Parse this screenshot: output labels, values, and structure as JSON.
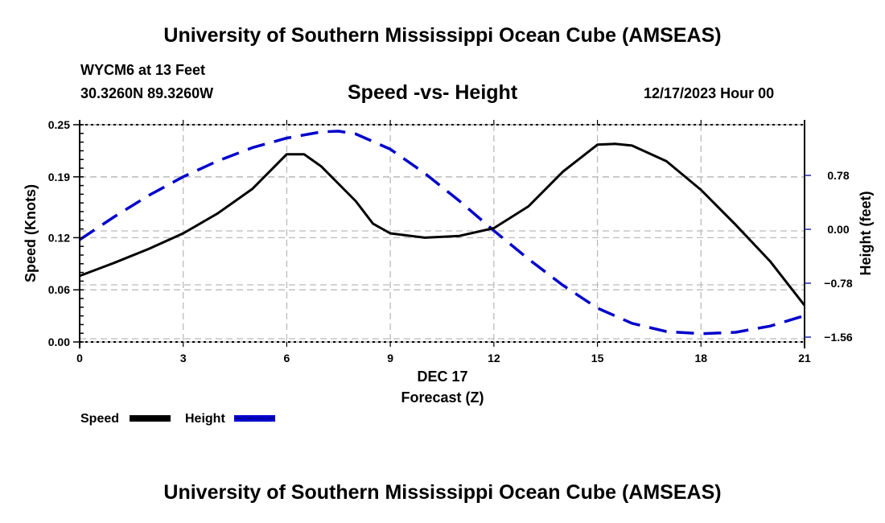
{
  "header": {
    "main_title": "University of Southern Mississippi Ocean Cube (AMSEAS)",
    "station": "WYCM6 at 13 Feet",
    "coordinates": "30.3260N  89.3260W",
    "subtitle": "Speed -vs- Height",
    "datetime": "12/17/2023 Hour 00"
  },
  "footer": {
    "title": "University of Southern Mississippi Ocean Cube (AMSEAS)"
  },
  "colors": {
    "speed": "#000000",
    "height": "#0000cc",
    "grid": "#bbbbbb"
  },
  "chart_data": {
    "type": "line",
    "title": "Speed -vs- Height",
    "xlabel": "Forecast (Z)",
    "xsublabel": "DEC 17",
    "ylabel": "Speed (Knots)",
    "y2label": "Height (feet)",
    "xlim": [
      0,
      21
    ],
    "ylim": [
      0,
      0.25
    ],
    "y2lim": [
      -1.56,
      1.58
    ],
    "grid": true,
    "x_ticks": [
      0,
      3,
      6,
      9,
      12,
      15,
      18,
      21
    ],
    "x_tick_labels": [
      "0",
      "3",
      "6",
      "9",
      "12",
      "15",
      "18",
      "21"
    ],
    "y_ticks": [
      0.0,
      0.06,
      0.12,
      0.19,
      0.25
    ],
    "y_tick_labels": [
      "0.00",
      "0.06",
      "0.12",
      "0.19",
      "0.25"
    ],
    "y2_ticks": [
      -1.56,
      -0.78,
      0.0,
      0.78
    ],
    "y2_tick_labels": [
      "−1.56",
      "−0.78",
      "0.00",
      "0.78"
    ],
    "legend": {
      "placement": "bottom-left",
      "entries": [
        {
          "label": "Speed",
          "style": "solid"
        },
        {
          "label": "Height",
          "style": "dashed"
        }
      ]
    },
    "series": [
      {
        "name": "Speed",
        "axis": "left",
        "x": [
          0,
          1,
          2,
          3,
          4,
          5,
          6,
          6.5,
          7,
          8,
          8.5,
          9,
          10,
          11,
          12,
          13,
          14,
          15,
          15.5,
          16,
          17,
          18,
          19,
          20,
          21
        ],
        "values": [
          0.076,
          0.091,
          0.107,
          0.125,
          0.148,
          0.176,
          0.216,
          0.216,
          0.202,
          0.162,
          0.136,
          0.125,
          0.12,
          0.122,
          0.131,
          0.156,
          0.196,
          0.227,
          0.228,
          0.226,
          0.208,
          0.175,
          0.135,
          0.093,
          0.042
        ]
      },
      {
        "name": "Height",
        "axis": "right",
        "x": [
          0,
          1,
          2,
          3,
          4,
          5,
          6,
          7,
          7.5,
          8,
          9,
          10,
          11,
          12,
          13,
          14,
          15,
          16,
          17,
          18,
          19,
          20,
          21
        ],
        "values": [
          -0.15,
          0.18,
          0.49,
          0.76,
          0.99,
          1.18,
          1.32,
          1.41,
          1.42,
          1.38,
          1.16,
          0.81,
          0.41,
          -0.02,
          -0.43,
          -0.81,
          -1.14,
          -1.36,
          -1.48,
          -1.51,
          -1.49,
          -1.4,
          -1.25
        ]
      }
    ]
  }
}
